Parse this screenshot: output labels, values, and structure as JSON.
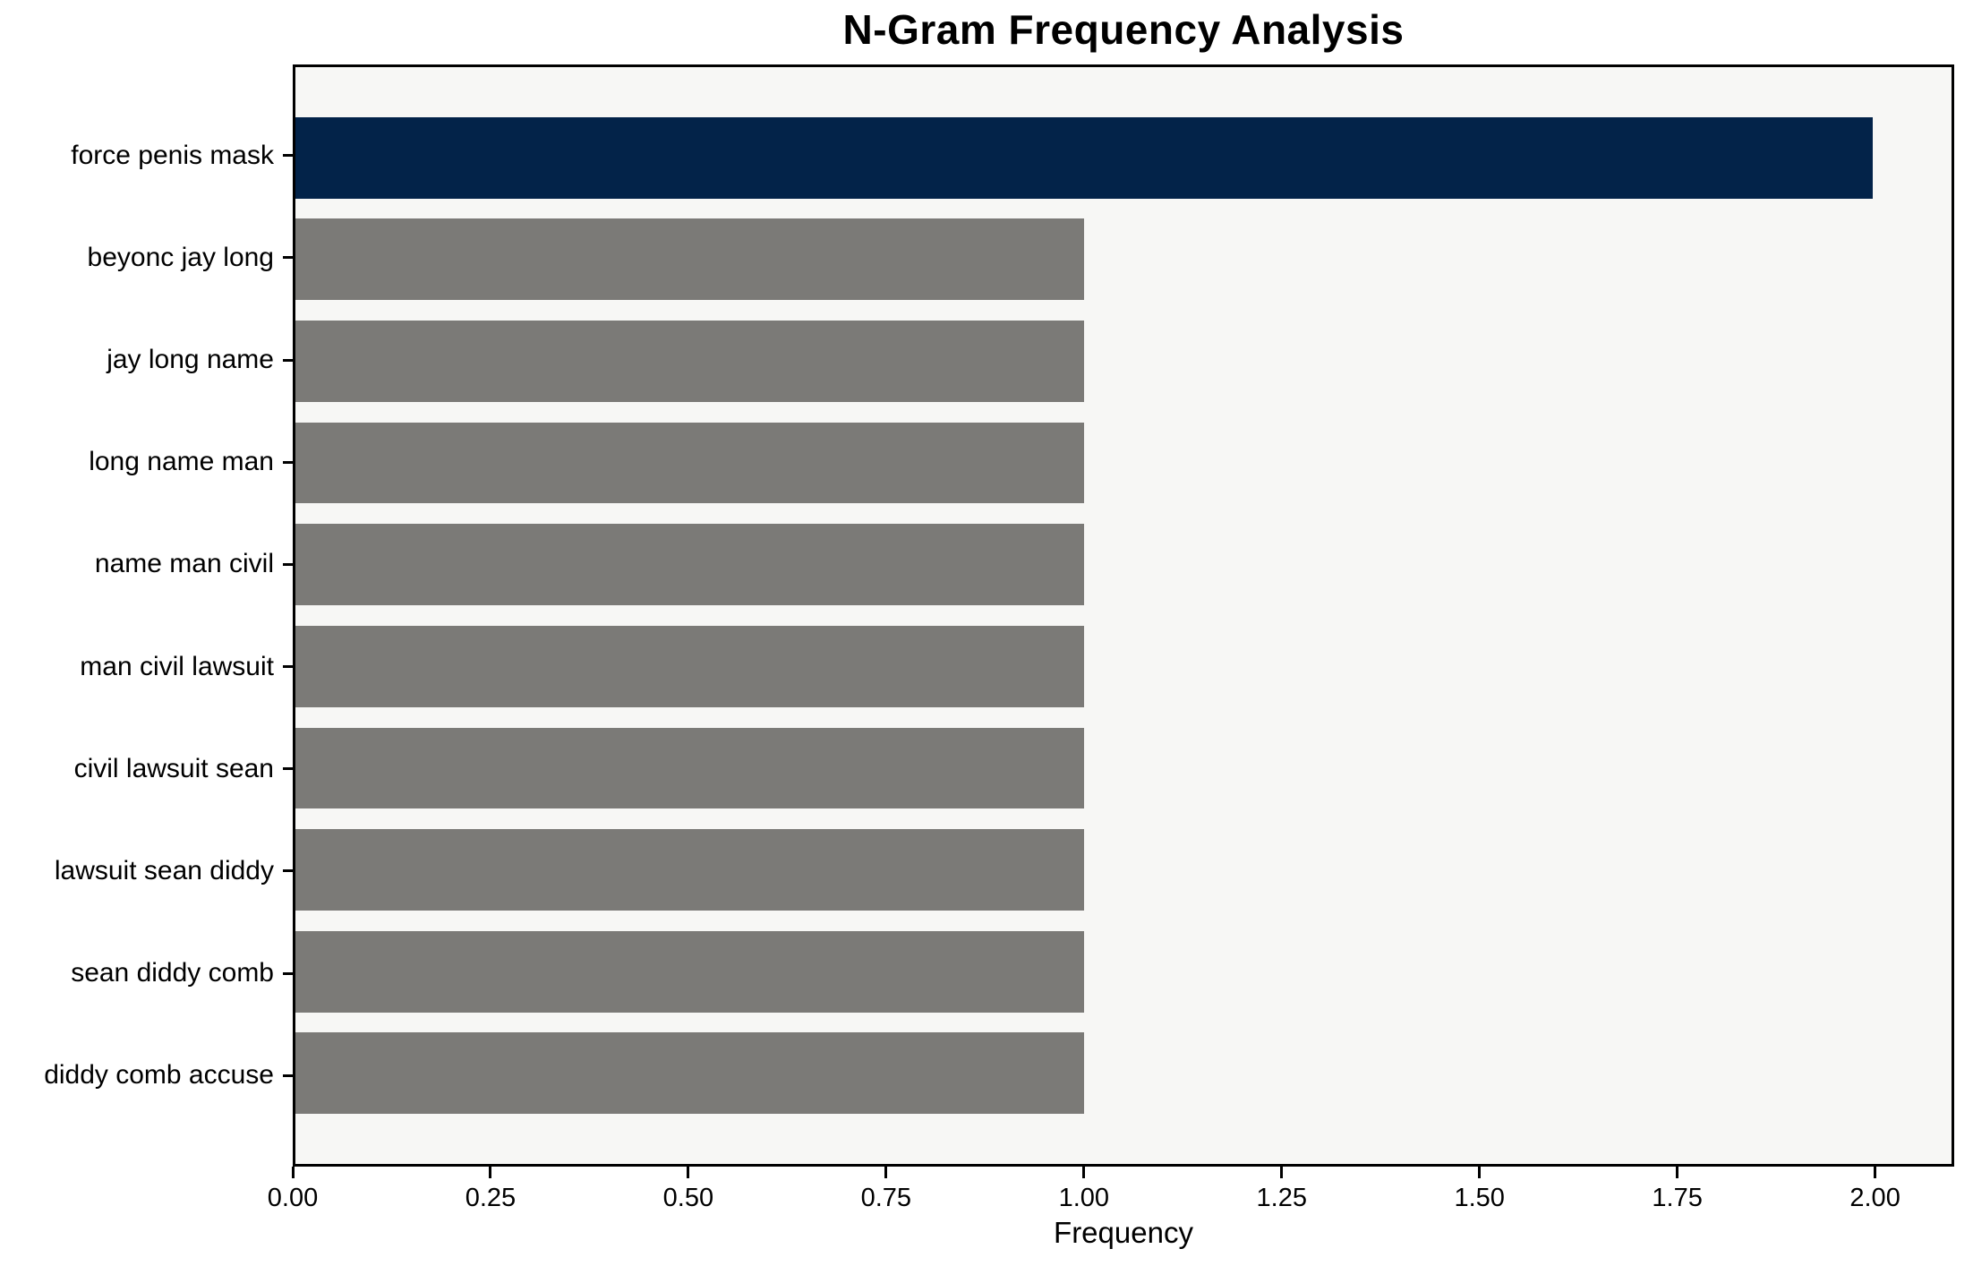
{
  "chart_data": {
    "type": "bar",
    "orientation": "horizontal",
    "title": "N-Gram Frequency Analysis",
    "xlabel": "Frequency",
    "ylabel": "",
    "categories": [
      "force penis mask",
      "beyonc jay long",
      "jay long name",
      "long name man",
      "name man civil",
      "man civil lawsuit",
      "civil lawsuit sean",
      "lawsuit sean diddy",
      "sean diddy comb",
      "diddy comb accuse"
    ],
    "values": [
      2,
      1,
      1,
      1,
      1,
      1,
      1,
      1,
      1,
      1
    ],
    "bar_colors": [
      "#032349",
      "#7B7A77",
      "#7B7A77",
      "#7B7A77",
      "#7B7A77",
      "#7B7A77",
      "#7B7A77",
      "#7B7A77",
      "#7B7A77",
      "#7B7A77"
    ],
    "xlim": [
      0,
      2.1
    ],
    "xtick_values": [
      0,
      0.25,
      0.5,
      0.75,
      1.0,
      1.25,
      1.5,
      1.75,
      2.0
    ],
    "xtick_labels": [
      "0.00",
      "0.25",
      "0.50",
      "0.75",
      "1.00",
      "1.25",
      "1.50",
      "1.75",
      "2.00"
    ],
    "grid": "off",
    "legend": "none",
    "colors": {
      "highlight_bar": "#032349",
      "default_bar": "#7B7A77",
      "plot_background": "#F7F7F5",
      "figure_background": "#FFFFFF",
      "axis": "#000000",
      "text": "#000000"
    }
  }
}
